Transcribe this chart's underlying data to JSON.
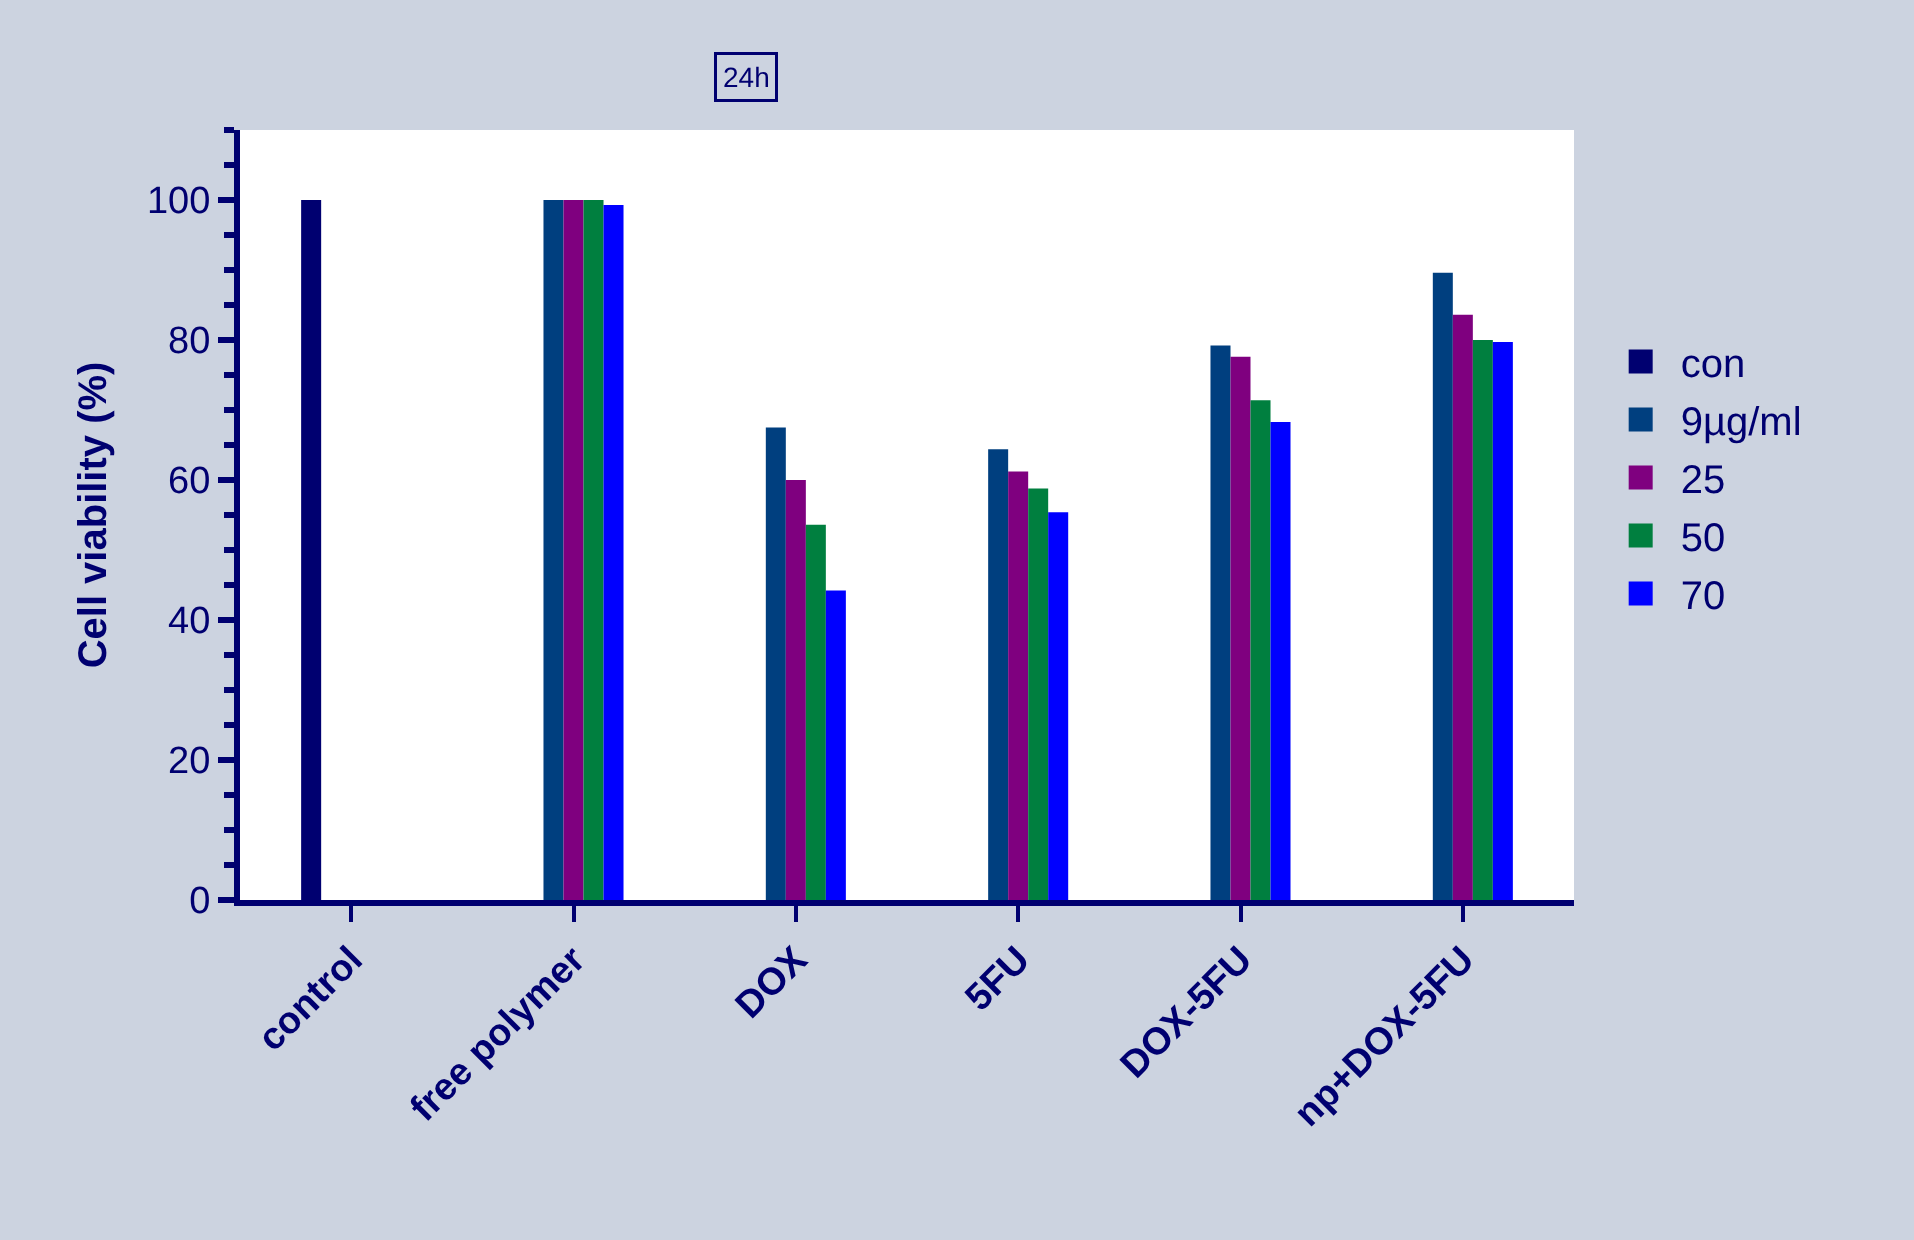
{
  "chart_data": {
    "type": "bar",
    "title": "24h",
    "ylabel": "Cell viability (%)",
    "categories": [
      "control",
      "free polymer",
      "DOX",
      "5FU",
      "DOX-5FU",
      "np+DOX-5FU"
    ],
    "series": [
      {
        "name": "con",
        "color": "#000070",
        "values": [
          100,
          null,
          null,
          null,
          null,
          null
        ]
      },
      {
        "name": "9µg/ml",
        "color": "#003f7f",
        "values": [
          null,
          100,
          67.5,
          64.4,
          79.2,
          89.6
        ]
      },
      {
        "name": "25",
        "color": "#7f007f",
        "values": [
          null,
          100,
          60,
          61.2,
          77.6,
          83.6
        ]
      },
      {
        "name": "50",
        "color": "#007f3f",
        "values": [
          null,
          100,
          53.6,
          58.8,
          71.4,
          80
        ]
      },
      {
        "name": "70",
        "color": "#0000ff",
        "values": [
          null,
          99.3,
          44.2,
          55.4,
          68.3,
          79.7
        ]
      }
    ],
    "ylim": [
      0,
      110
    ],
    "yticks": [
      0,
      20,
      40,
      60,
      80,
      100
    ],
    "legend": "right"
  }
}
